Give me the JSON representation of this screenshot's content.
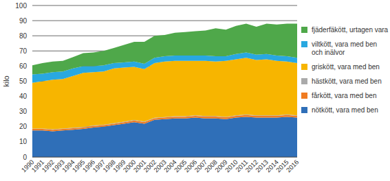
{
  "chart_data": {
    "type": "area",
    "stacked": true,
    "grid": true,
    "legend": "right",
    "y_label": "kilo",
    "categories": [
      "1990",
      "1991",
      "1992",
      "1993",
      "1994",
      "1995",
      "1996",
      "1997",
      "1998",
      "1999",
      "2000",
      "2001",
      "2002",
      "2003",
      "2004",
      "2005",
      "2006",
      "2007",
      "2008",
      "2009",
      "2010",
      "2011",
      "2012",
      "2013",
      "2014",
      "2015",
      "2016"
    ],
    "ylim": [
      0,
      100
    ],
    "yticks": [
      0,
      10,
      20,
      30,
      40,
      50,
      60,
      70,
      80,
      90,
      100
    ],
    "series": [
      {
        "name": "nötkött, vara med ben",
        "color": "#2f6fb8",
        "values": [
          17.5,
          17.5,
          17,
          17.5,
          18,
          18.5,
          19.5,
          20,
          21,
          22,
          23,
          22,
          24.5,
          25,
          25.5,
          25.5,
          26,
          25.5,
          25.5,
          25,
          26,
          26.5,
          26,
          26,
          26,
          26.5,
          26
        ]
      },
      {
        "name": "fårkött, vara med ben",
        "color": "#f07c22",
        "values": [
          1,
          1,
          1,
          1,
          1,
          1,
          1,
          1,
          1,
          1,
          1.1,
          1.1,
          1.1,
          1.1,
          1.1,
          1.1,
          1.2,
          1.2,
          1.2,
          1.2,
          1.2,
          1.2,
          1.2,
          1.2,
          1.2,
          1.2,
          1.2
        ]
      },
      {
        "name": "hästkött, vara med ben",
        "color": "#aaaaaa",
        "values": [
          0.3,
          0.3,
          0.3,
          0.3,
          0.3,
          0.3,
          0.3,
          0.3,
          0.3,
          0.3,
          0.3,
          0.3,
          0.3,
          0.3,
          0.3,
          0.3,
          0.3,
          0.3,
          0.3,
          0.3,
          0.3,
          0.3,
          0.3,
          0.3,
          0.3,
          0.3,
          0.3
        ]
      },
      {
        "name": "griskött, vara med ben",
        "color": "#f7b500",
        "values": [
          30.2,
          31.2,
          32.7,
          32.7,
          34.2,
          35.7,
          35.2,
          35.2,
          36.2,
          35.7,
          35.1,
          34.6,
          36.1,
          36.6,
          36.6,
          36.6,
          36,
          36.5,
          36,
          37,
          37,
          37.5,
          36.5,
          37,
          36,
          35,
          34.5
        ]
      },
      {
        "name": "viltkött, vara med ben och inälvor",
        "color": "#29a8e0",
        "values": [
          5.5,
          5,
          5,
          5,
          5,
          4.5,
          4,
          4,
          3.5,
          3.5,
          3.5,
          3.5,
          3.5,
          3.5,
          3.5,
          3.5,
          3.5,
          3.5,
          3.5,
          3,
          3.5,
          3.5,
          3.5,
          3.5,
          3.5,
          3.5,
          3.5
        ]
      },
      {
        "name": "fjäderfäkött, urtagen vara",
        "color": "#4fa84a",
        "values": [
          6,
          7,
          7,
          7,
          7.5,
          8.5,
          9,
          9.5,
          10,
          11.5,
          13,
          14.5,
          14.5,
          14,
          15,
          15.5,
          16,
          16.5,
          18.5,
          17.5,
          18.5,
          19,
          18.5,
          20,
          20.5,
          21.5,
          22.5
        ]
      }
    ]
  }
}
